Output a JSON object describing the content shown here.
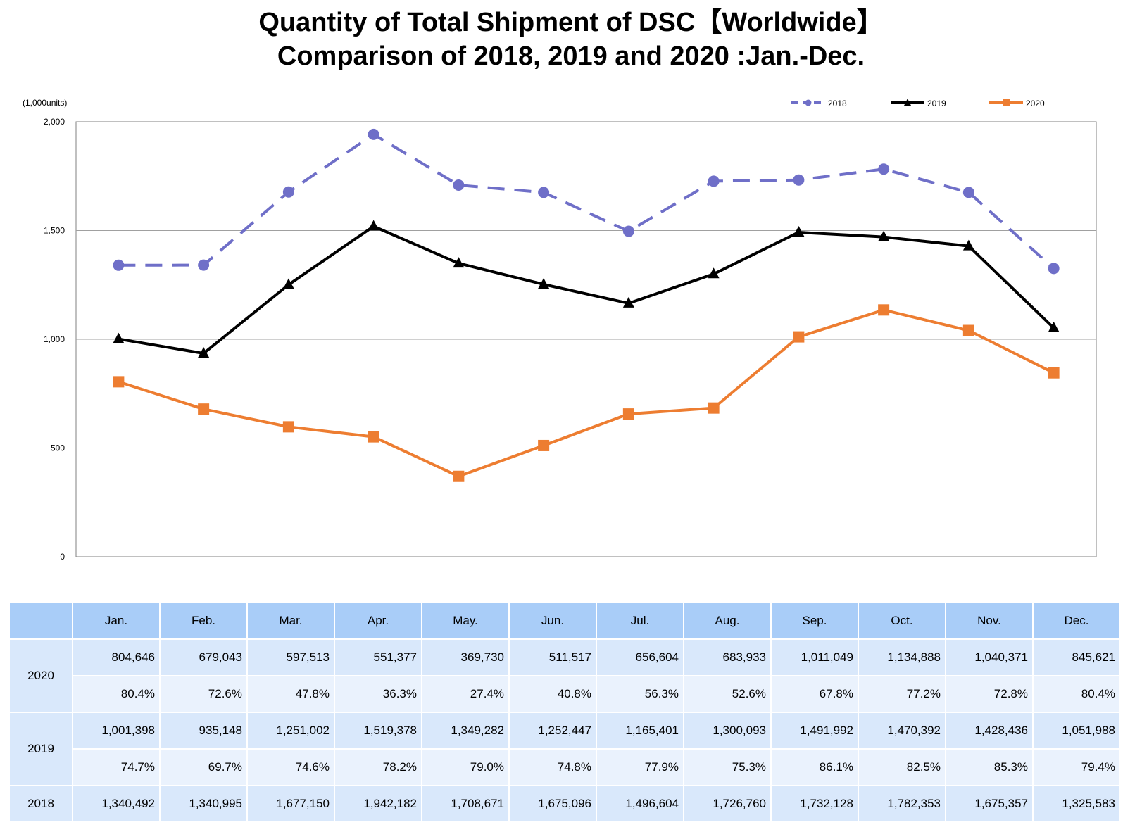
{
  "title_line1": "Quantity of Total Shipment of DSC【Worldwide】",
  "title_line2": "Comparison of 2018, 2019 and 2020 :Jan.-Dec.",
  "unit_label": "(1,000units)",
  "colors": {
    "2018": "#6f6fc8",
    "2019": "#000000",
    "2020": "#ed7d31",
    "header": "#a9cdf8",
    "cell": "#d9e8fb"
  },
  "chart_data": {
    "type": "line",
    "categories": [
      "Jan.",
      "Feb.",
      "Mar.",
      "Apr.",
      "May.",
      "Jun.",
      "Jul.",
      "Aug.",
      "Sep.",
      "Oct.",
      "Nov.",
      "Dec."
    ],
    "ylim": [
      0,
      2000
    ],
    "yticks": [
      0,
      500,
      1000,
      1500,
      2000
    ],
    "ytick_labels": [
      "0",
      "500",
      "1,000",
      "1,500",
      "2,000"
    ],
    "ylabel": "(1,000units)",
    "grid": true,
    "legend_position": "top-right",
    "series": [
      {
        "name": "2018",
        "style": "dashed",
        "marker": "circle",
        "values": [
          1340.492,
          1340.995,
          1677.15,
          1942.182,
          1708.671,
          1675.096,
          1496.604,
          1726.76,
          1732.128,
          1782.353,
          1675.357,
          1325.583
        ]
      },
      {
        "name": "2019",
        "style": "solid",
        "marker": "triangle",
        "values": [
          1001.398,
          935.148,
          1251.002,
          1519.378,
          1349.282,
          1252.447,
          1165.401,
          1300.093,
          1491.992,
          1470.392,
          1428.436,
          1051.988
        ]
      },
      {
        "name": "2020",
        "style": "solid",
        "marker": "square",
        "values": [
          804.646,
          679.043,
          597.513,
          551.377,
          369.73,
          511.517,
          656.604,
          683.933,
          1011.049,
          1134.888,
          1040.371,
          845.621
        ]
      }
    ]
  },
  "table": {
    "months": [
      "Jan.",
      "Feb.",
      "Mar.",
      "Apr.",
      "May.",
      "Jun.",
      "Jul.",
      "Aug.",
      "Sep.",
      "Oct.",
      "Nov.",
      "Dec."
    ],
    "rows": {
      "y2020": {
        "label": "2020",
        "values": [
          "804,646",
          "679,043",
          "597,513",
          "551,377",
          "369,730",
          "511,517",
          "656,604",
          "683,933",
          "1,011,049",
          "1,134,888",
          "1,040,371",
          "845,621"
        ],
        "percents": [
          "80.4%",
          "72.6%",
          "47.8%",
          "36.3%",
          "27.4%",
          "40.8%",
          "56.3%",
          "52.6%",
          "67.8%",
          "77.2%",
          "72.8%",
          "80.4%"
        ]
      },
      "y2019": {
        "label": "2019",
        "values": [
          "1,001,398",
          "935,148",
          "1,251,002",
          "1,519,378",
          "1,349,282",
          "1,252,447",
          "1,165,401",
          "1,300,093",
          "1,491,992",
          "1,470,392",
          "1,428,436",
          "1,051,988"
        ],
        "percents": [
          "74.7%",
          "69.7%",
          "74.6%",
          "78.2%",
          "79.0%",
          "74.8%",
          "77.9%",
          "75.3%",
          "86.1%",
          "82.5%",
          "85.3%",
          "79.4%"
        ]
      },
      "y2018": {
        "label": "2018",
        "values": [
          "1,340,492",
          "1,340,995",
          "1,677,150",
          "1,942,182",
          "1,708,671",
          "1,675,096",
          "1,496,604",
          "1,726,760",
          "1,732,128",
          "1,782,353",
          "1,675,357",
          "1,325,583"
        ]
      }
    }
  }
}
